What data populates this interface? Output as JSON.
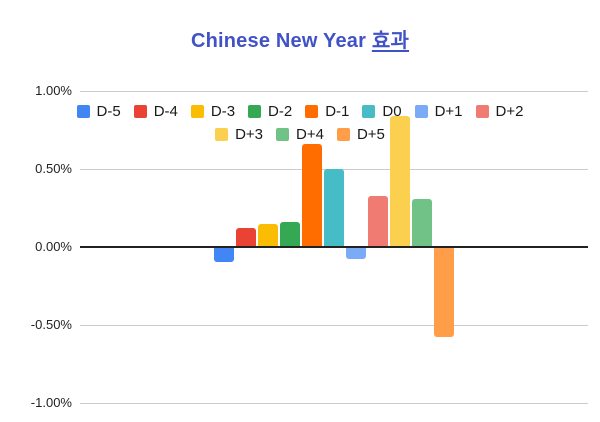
{
  "title": {
    "text_plain": "Chinese New Year ",
    "text_underlined": "효과",
    "full_text": "Chinese New Year 효과",
    "color": "#4152C6"
  },
  "chart_data": {
    "type": "bar",
    "title": "Chinese New Year 효과",
    "categories": [
      "D-5",
      "D-4",
      "D-3",
      "D-2",
      "D-1",
      "D0",
      "D+1",
      "D+2",
      "D+3",
      "D+4",
      "D+5"
    ],
    "values": [
      -0.09,
      0.12,
      0.15,
      0.16,
      0.66,
      0.5,
      -0.07,
      0.33,
      0.84,
      0.31,
      -0.57
    ],
    "value_unit": "%",
    "series_colors": [
      "#4285F4",
      "#EA4335",
      "#FBBC04",
      "#34A853",
      "#FF6D01",
      "#46BDC6",
      "#7BAAF7",
      "#F07B72",
      "#FCD04F",
      "#71C287",
      "#FF9D48"
    ],
    "xlabel": "",
    "ylabel": "",
    "ylim": [
      -1.0,
      1.0
    ],
    "y_tick_labels": [
      "1.00%",
      "0.50%",
      "0.00%",
      "-0.50%",
      "-1.00%"
    ],
    "y_tick_values": [
      1.0,
      0.5,
      0.0,
      -0.5,
      -1.0
    ],
    "grid": true,
    "gridline_color": "#cccccc",
    "zero_line_color": "#222222",
    "legend": {
      "position": "top-inside",
      "rows": [
        [
          "D-5",
          "D-4",
          "D-3",
          "D-2",
          "D-1",
          "D0",
          "D+1",
          "D+2"
        ],
        [
          "D+3",
          "D+4",
          "D+5"
        ]
      ]
    }
  }
}
